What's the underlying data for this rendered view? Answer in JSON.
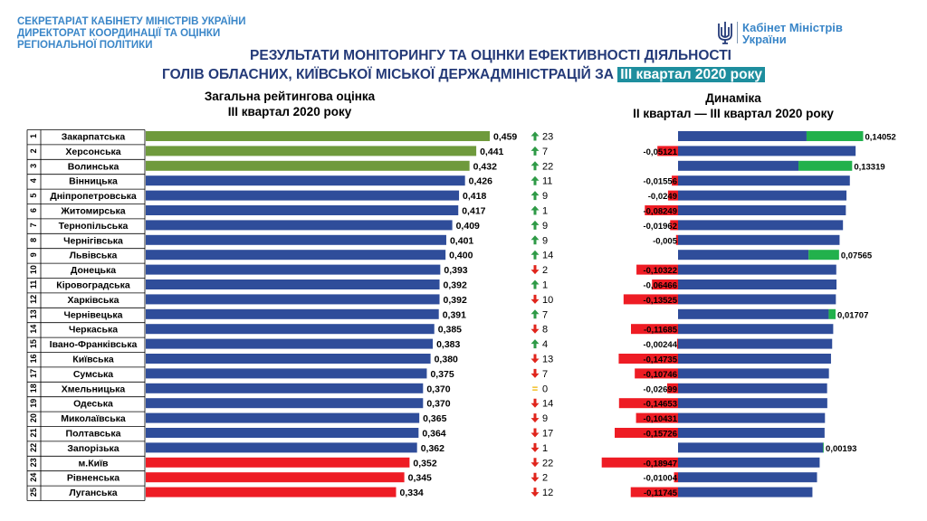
{
  "header": {
    "org_lines": [
      "СЕКРЕТАРІАТ КАБІНЕТУ МІНІСТРІВ УКРАЇНИ",
      "ДИРЕКТОРАТ КООРДИНАЦІЇ ТА ОЦІНКИ",
      "РЕГІОНАЛЬНОЇ ПОЛІТИКИ"
    ],
    "logo_line1": "Кабінет Міністрів",
    "logo_line2": "України",
    "title_line1": "РЕЗУЛЬТАТИ МОНІТОРИНГУ ТА ОЦІНКИ ЕФЕКТИВНОСТІ ДІЯЛЬНОСТІ",
    "title_line2_main": "ГОЛІВ ОБЛАСНИХ, КИЇВСЬКОЇ МІСЬКОЇ ДЕРЖАДМІНІСТРАЦІЙ ЗА",
    "title_line2_highlight": "ІІІ квартал 2020 року"
  },
  "colors": {
    "green": "#6f9a3c",
    "blue": "#2f4d9a",
    "red": "#ee1c24",
    "bright_green": "#22b14c",
    "arrow_up": "#2e9a46",
    "arrow_down": "#e0251c",
    "equal": "#f0b400"
  },
  "chart_data": [
    {
      "type": "bar",
      "title": "Загальна рейтингова оцінка",
      "subtitle": "ІІІ квартал 2020 року",
      "ranks": [
        1,
        2,
        3,
        4,
        5,
        6,
        7,
        8,
        9,
        10,
        11,
        12,
        13,
        14,
        15,
        16,
        17,
        18,
        19,
        20,
        21,
        22,
        23,
        24,
        25
      ],
      "categories": [
        "Закарпатська",
        "Херсонська",
        "Волинська",
        "Вінницька",
        "Дніпропетровська",
        "Житомирська",
        "Тернопільська",
        "Чернігівська",
        "Львівська",
        "Донецька",
        "Кіровоградська",
        "Харківська",
        "Чернівецька",
        "Черкаська",
        "Івано-Франківська",
        "Київська",
        "Сумська",
        "Хмельницька",
        "Одеська",
        "Миколаївська",
        "Полтавська",
        "Запорізька",
        "м.Київ",
        "Рівненська",
        "Луганська"
      ],
      "values": [
        0.459,
        0.441,
        0.432,
        0.426,
        0.418,
        0.417,
        0.409,
        0.401,
        0.4,
        0.393,
        0.392,
        0.392,
        0.391,
        0.385,
        0.383,
        0.38,
        0.375,
        0.37,
        0.37,
        0.365,
        0.364,
        0.362,
        0.352,
        0.345,
        0.334
      ],
      "value_labels": [
        "0,459",
        "0,441",
        "0,432",
        "0,426",
        "0,418",
        "0,417",
        "0,409",
        "0,401",
        "0,400",
        "0,393",
        "0,392",
        "0,392",
        "0,391",
        "0,385",
        "0,383",
        "0,380",
        "0,375",
        "0,370",
        "0,370",
        "0,365",
        "0,364",
        "0,362",
        "0,352",
        "0,345",
        "0,334"
      ],
      "bar_color_groups": [
        "green",
        "green",
        "green",
        "blue",
        "blue",
        "blue",
        "blue",
        "blue",
        "blue",
        "blue",
        "blue",
        "blue",
        "blue",
        "blue",
        "blue",
        "blue",
        "blue",
        "blue",
        "blue",
        "blue",
        "blue",
        "blue",
        "red",
        "red",
        "red"
      ],
      "rank_change": {
        "direction": [
          "up",
          "up",
          "up",
          "up",
          "up",
          "up",
          "up",
          "up",
          "up",
          "down",
          "up",
          "down",
          "up",
          "down",
          "up",
          "down",
          "down",
          "equal",
          "down",
          "down",
          "down",
          "down",
          "down",
          "down",
          "down"
        ],
        "values": [
          23,
          7,
          22,
          11,
          9,
          1,
          9,
          9,
          14,
          2,
          1,
          10,
          7,
          8,
          4,
          13,
          7,
          0,
          14,
          9,
          17,
          1,
          22,
          2,
          12
        ]
      }
    },
    {
      "type": "bar",
      "title": "Динаміка",
      "subtitle": "ІІ квартал — ІІІ квартал 2020 року",
      "categories": [
        "Закарпатська",
        "Херсонська",
        "Волинська",
        "Вінницька",
        "Дніпропетровська",
        "Житомирська",
        "Тернопільська",
        "Чернігівська",
        "Львівська",
        "Донецька",
        "Кіровоградська",
        "Харківська",
        "Чернівецька",
        "Черкаська",
        "Івано-Франківська",
        "Київська",
        "Сумська",
        "Хмельницька",
        "Одеська",
        "Миколаївська",
        "Полтавська",
        "Запорізька",
        "м.Київ",
        "Рівненська",
        "Луганська"
      ],
      "q2_values": [
        0.319,
        0.492,
        0.299,
        0.442,
        0.443,
        0.499,
        0.429,
        0.406,
        0.324,
        0.496,
        0.458,
        0.527,
        0.374,
        0.502,
        0.385,
        0.527,
        0.482,
        0.397,
        0.517,
        0.469,
        0.521,
        0.36,
        0.541,
        0.355,
        0.451
      ],
      "change_values": [
        0.14052,
        -0.05121,
        0.13319,
        -0.01556,
        -0.0249,
        -0.08249,
        -0.01962,
        -0.005,
        0.07565,
        -0.10322,
        -0.06466,
        -0.13525,
        0.01707,
        -0.11685,
        -0.00244,
        -0.14735,
        -0.10746,
        -0.02699,
        -0.14653,
        -0.10431,
        -0.15726,
        0.00193,
        -0.18947,
        -0.01004,
        -0.11745
      ],
      "change_labels": [
        "0,14052",
        "-0,05121",
        "0,13319",
        "-0,01556",
        "-0,0249",
        "-0,08249",
        "-0,01962",
        "-0,005",
        "0,07565",
        "-0,10322",
        "-0,06466",
        "-0,13525",
        "0,01707",
        "-0,11685",
        "-0,00244",
        "-0,14735",
        "-0,10746",
        "-0,02699",
        "-0,14653",
        "-0,10431",
        "-0,15726",
        "0,00193",
        "-0,18947",
        "-0,01004",
        "-0,11745"
      ]
    }
  ]
}
